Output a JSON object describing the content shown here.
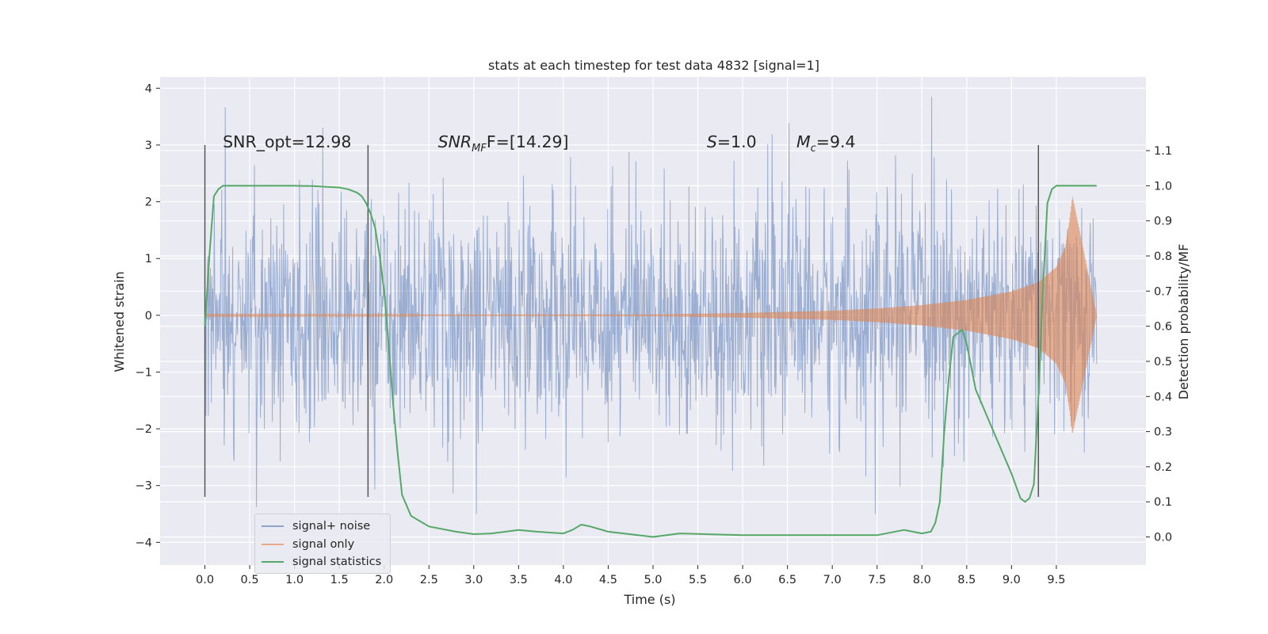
{
  "chart_data": {
    "type": "line",
    "title": "stats at each timestep for test data 4832 [signal=1]",
    "xlabel": "Time (s)",
    "ylabel": "Whitened strain",
    "y2label": "Detection probability/MF",
    "xlim": [
      -0.5,
      10.5
    ],
    "ylim": [
      -4.4,
      4.2
    ],
    "y2lim": [
      -0.08,
      1.31
    ],
    "xticks": [
      "0.0",
      "0.5",
      "1.0",
      "1.5",
      "2.0",
      "2.5",
      "3.0",
      "3.5",
      "4.0",
      "4.5",
      "5.0",
      "5.5",
      "6.0",
      "6.5",
      "7.0",
      "7.5",
      "8.0",
      "8.5",
      "9.0",
      "9.5"
    ],
    "yticks": [
      "−4",
      "−3",
      "−2",
      "−1",
      "0",
      "1",
      "2",
      "3",
      "4"
    ],
    "y2ticks": [
      "0.0",
      "0.1",
      "0.2",
      "0.3",
      "0.4",
      "0.5",
      "0.6",
      "0.7",
      "0.8",
      "0.9",
      "1.0",
      "1.1"
    ],
    "grid": true,
    "legend_position": "lower-left",
    "series": [
      {
        "name": "signal+ noise",
        "axis": "left",
        "color": "#4c72b0",
        "sampling": "noisy strain between -3.5 and 3.8 over 0.0–9.95 s",
        "x_range": [
          0.0,
          9.95
        ]
      },
      {
        "name": "signal only",
        "axis": "left",
        "color": "#dd8452",
        "envelope_x": [
          0.0,
          5.0,
          6.0,
          7.0,
          7.5,
          8.0,
          8.5,
          9.0,
          9.3,
          9.5,
          9.6,
          9.65,
          9.68,
          9.95
        ],
        "envelope_amplitude": [
          0.01,
          0.015,
          0.04,
          0.08,
          0.12,
          0.18,
          0.27,
          0.42,
          0.58,
          0.85,
          1.2,
          1.7,
          2.1,
          0.01
        ],
        "x_range": [
          0.0,
          9.95
        ]
      },
      {
        "name": "signal statistics",
        "axis": "right",
        "color": "#55a868",
        "x": [
          0.0,
          0.05,
          0.1,
          0.15,
          0.2,
          0.3,
          0.5,
          1.0,
          1.2,
          1.5,
          1.6,
          1.7,
          1.75,
          1.8,
          1.85,
          1.9,
          1.95,
          2.0,
          2.05,
          2.1,
          2.15,
          2.2,
          2.3,
          2.5,
          2.8,
          3.0,
          3.2,
          3.5,
          3.7,
          4.0,
          4.1,
          4.2,
          4.3,
          4.5,
          5.0,
          5.3,
          6.0,
          7.0,
          7.5,
          7.8,
          8.0,
          8.1,
          8.15,
          8.2,
          8.25,
          8.3,
          8.35,
          8.4,
          8.45,
          8.5,
          8.6,
          8.8,
          9.0,
          9.1,
          9.15,
          9.2,
          9.25,
          9.3,
          9.35,
          9.4,
          9.45,
          9.5,
          9.6,
          9.95
        ],
        "y": [
          0.6,
          0.8,
          0.97,
          0.99,
          1.0,
          1.0,
          1.0,
          1.0,
          0.999,
          0.995,
          0.99,
          0.98,
          0.97,
          0.95,
          0.92,
          0.88,
          0.8,
          0.7,
          0.55,
          0.38,
          0.24,
          0.12,
          0.06,
          0.03,
          0.015,
          0.008,
          0.01,
          0.02,
          0.015,
          0.01,
          0.02,
          0.035,
          0.03,
          0.015,
          0.0,
          0.01,
          0.005,
          0.005,
          0.005,
          0.02,
          0.01,
          0.015,
          0.04,
          0.1,
          0.3,
          0.45,
          0.57,
          0.58,
          0.59,
          0.55,
          0.42,
          0.3,
          0.18,
          0.11,
          0.1,
          0.11,
          0.15,
          0.4,
          0.7,
          0.95,
          0.99,
          1.0,
          1.0,
          1.0
        ]
      }
    ],
    "vlines": [
      0.0,
      1.82,
      9.3
    ],
    "annotations": [
      {
        "id": "snr_opt",
        "text": "SNR_opt=12.98",
        "x": 0.2,
        "y": 3.0
      },
      {
        "id": "snr_mf_main",
        "text": "SNR",
        "sub": "MF",
        "tail": "F=[14.29]",
        "x": 2.6,
        "y": 3.0
      },
      {
        "id": "s_main",
        "text": "S",
        "tail": "=1.0",
        "x": 5.6,
        "y": 3.0
      },
      {
        "id": "mc_main",
        "text": "M",
        "sub": "c",
        "tail": "=9.4",
        "x": 6.6,
        "y": 3.0
      }
    ],
    "colors": {
      "background": "#eaeaf2",
      "grid": "#ffffff",
      "text": "#262626",
      "vline": "#555555"
    }
  }
}
